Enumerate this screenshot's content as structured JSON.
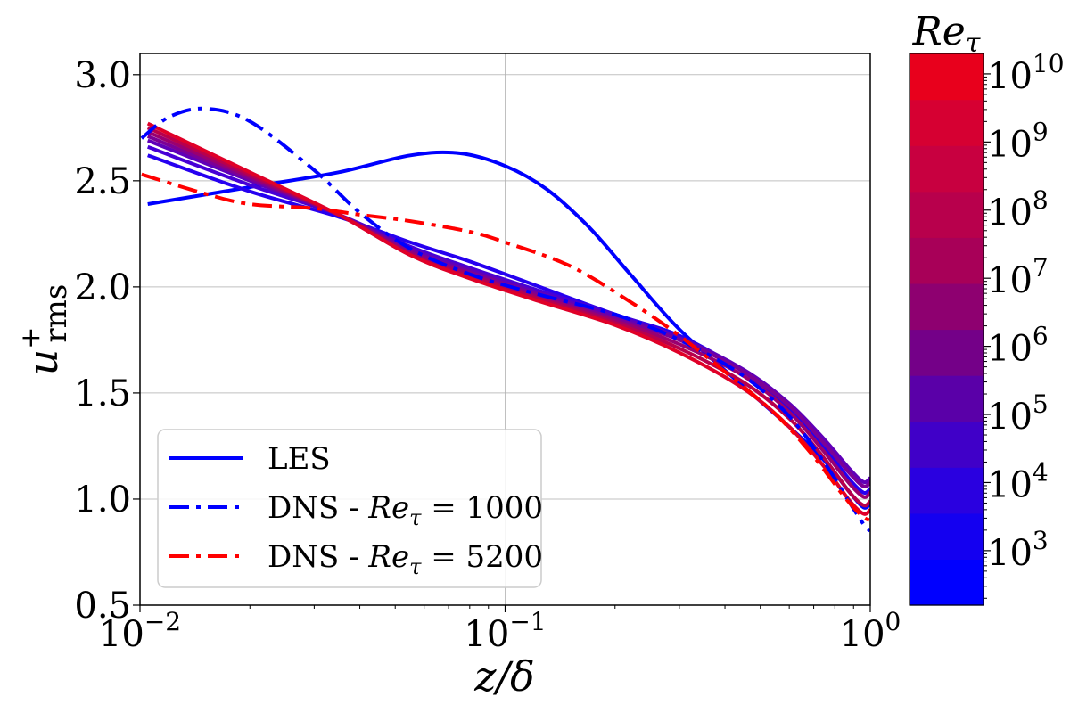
{
  "chart_data": {
    "type": "line",
    "xscale": "log",
    "xlim": [
      0.01,
      1
    ],
    "ylim": [
      0.5,
      3.1
    ],
    "xlabel": "z/δ",
    "ylabel": "u+rms",
    "ylabel_main": "u",
    "ylabel_sup": "+",
    "ylabel_sub": "rms",
    "grid": true,
    "legend_position": "lower-left",
    "x_ticks": [
      {
        "value": 0.01,
        "base": "10",
        "exp": "−2"
      },
      {
        "value": 0.1,
        "base": "10",
        "exp": "−1"
      },
      {
        "value": 1,
        "base": "10",
        "exp": "0"
      }
    ],
    "y_ticks": [
      {
        "value": 0.5,
        "label": "0.5"
      },
      {
        "value": 1.0,
        "label": "1.0"
      },
      {
        "value": 1.5,
        "label": "1.5"
      },
      {
        "value": 2.0,
        "label": "2.0"
      },
      {
        "value": 2.5,
        "label": "2.5"
      },
      {
        "value": 3.0,
        "label": "3.0"
      }
    ],
    "legend": [
      {
        "label": "LES",
        "color": "#0000ff",
        "style": "solid"
      },
      {
        "label_prefix": "DNS - ",
        "math_base": "Re",
        "math_sub": "τ",
        "math_rest": " = 1000",
        "color": "#0000ff",
        "style": "dashdot"
      },
      {
        "label_prefix": "DNS - ",
        "math_base": "Re",
        "math_sub": "τ",
        "math_rest": " = 5200",
        "color": "#ff0000",
        "style": "dashdot"
      }
    ],
    "series": [
      {
        "name": "LES Re_tau 10^2.5",
        "style": "solid",
        "color": "#0000ff",
        "width": 4,
        "x": [
          0.0105,
          0.02,
          0.035,
          0.055,
          0.075,
          0.1,
          0.13,
          0.17,
          0.22,
          0.3,
          0.45,
          0.6,
          0.75,
          0.88,
          0.96,
          1.0
        ],
        "y": [
          2.39,
          2.47,
          2.54,
          2.62,
          2.63,
          2.57,
          2.46,
          2.28,
          2.06,
          1.8,
          1.53,
          1.34,
          1.18,
          1.03,
          0.96,
          0.98
        ]
      },
      {
        "name": "LES Re_tau 10^3.5",
        "style": "solid",
        "color": "#2600f0",
        "width": 4,
        "x": [
          0.0105,
          0.02,
          0.035,
          0.055,
          0.08,
          0.12,
          0.2,
          0.3,
          0.45,
          0.6,
          0.75,
          0.88,
          0.96,
          1.0
        ],
        "y": [
          2.62,
          2.45,
          2.33,
          2.21,
          2.12,
          2.01,
          1.87,
          1.77,
          1.6,
          1.43,
          1.24,
          1.09,
          1.03,
          1.05
        ]
      },
      {
        "name": "LES Re_tau 10^4.5",
        "style": "solid",
        "color": "#4700d6",
        "width": 4,
        "x": [
          0.0105,
          0.02,
          0.035,
          0.055,
          0.08,
          0.12,
          0.2,
          0.3,
          0.45,
          0.6,
          0.75,
          0.88,
          0.96,
          1.0
        ],
        "y": [
          2.66,
          2.48,
          2.34,
          2.19,
          2.09,
          1.99,
          1.87,
          1.76,
          1.6,
          1.44,
          1.26,
          1.12,
          1.06,
          1.08
        ]
      },
      {
        "name": "LES Re_tau 10^5.5",
        "style": "solid",
        "color": "#6000b8",
        "width": 4,
        "x": [
          0.0105,
          0.02,
          0.035,
          0.055,
          0.08,
          0.12,
          0.2,
          0.3,
          0.45,
          0.6,
          0.75,
          0.88,
          0.96,
          1.0
        ],
        "y": [
          2.69,
          2.5,
          2.34,
          2.18,
          2.08,
          1.98,
          1.86,
          1.76,
          1.61,
          1.45,
          1.28,
          1.14,
          1.08,
          1.1
        ]
      },
      {
        "name": "LES Re_tau 10^6.5",
        "style": "solid",
        "color": "#7c0096",
        "width": 4,
        "x": [
          0.0105,
          0.02,
          0.035,
          0.055,
          0.08,
          0.12,
          0.2,
          0.3,
          0.45,
          0.6,
          0.75,
          0.88,
          0.96,
          1.0
        ],
        "y": [
          2.71,
          2.51,
          2.34,
          2.17,
          2.07,
          1.97,
          1.85,
          1.75,
          1.6,
          1.44,
          1.26,
          1.12,
          1.06,
          1.08
        ]
      },
      {
        "name": "LES Re_tau 10^7.5",
        "style": "solid",
        "color": "#9a0070",
        "width": 4,
        "x": [
          0.0105,
          0.02,
          0.035,
          0.055,
          0.08,
          0.12,
          0.2,
          0.3,
          0.45,
          0.6,
          0.75,
          0.88,
          0.96,
          1.0
        ],
        "y": [
          2.73,
          2.52,
          2.34,
          2.16,
          2.06,
          1.96,
          1.84,
          1.73,
          1.58,
          1.41,
          1.22,
          1.07,
          1.01,
          1.03
        ]
      },
      {
        "name": "LES Re_tau 10^8.5",
        "style": "solid",
        "color": "#b8004c",
        "width": 4,
        "x": [
          0.0105,
          0.02,
          0.035,
          0.055,
          0.08,
          0.12,
          0.2,
          0.3,
          0.45,
          0.6,
          0.75,
          0.88,
          0.96,
          1.0
        ],
        "y": [
          2.75,
          2.53,
          2.34,
          2.15,
          2.05,
          1.95,
          1.83,
          1.71,
          1.55,
          1.38,
          1.19,
          1.03,
          0.97,
          0.99
        ]
      },
      {
        "name": "LES Re_tau 10^9.5",
        "style": "solid",
        "color": "#e00028",
        "width": 4,
        "x": [
          0.0105,
          0.02,
          0.035,
          0.055,
          0.08,
          0.12,
          0.2,
          0.3,
          0.45,
          0.6,
          0.75,
          0.88,
          0.96,
          1.0
        ],
        "y": [
          2.77,
          2.54,
          2.34,
          2.15,
          2.04,
          1.94,
          1.82,
          1.69,
          1.52,
          1.34,
          1.15,
          0.99,
          0.93,
          0.95
        ]
      },
      {
        "name": "DNS Re_tau 1000",
        "style": "dashdot",
        "color": "#0000ff",
        "width": 4,
        "x": [
          0.0101,
          0.012,
          0.015,
          0.02,
          0.03,
          0.04,
          0.055,
          0.08,
          0.12,
          0.2,
          0.3,
          0.45,
          0.6,
          0.75,
          0.88,
          0.96,
          1.0
        ],
        "y": [
          2.7,
          2.8,
          2.84,
          2.78,
          2.55,
          2.35,
          2.18,
          2.06,
          1.97,
          1.87,
          1.75,
          1.58,
          1.39,
          1.17,
          0.98,
          0.88,
          0.85
        ]
      },
      {
        "name": "DNS Re_tau 5200",
        "style": "dashdot",
        "color": "#ff0000",
        "width": 4,
        "x": [
          0.0101,
          0.015,
          0.02,
          0.03,
          0.04,
          0.055,
          0.08,
          0.1,
          0.15,
          0.22,
          0.3,
          0.4,
          0.55,
          0.7,
          0.85,
          0.95,
          1.0
        ],
        "y": [
          2.53,
          2.44,
          2.39,
          2.37,
          2.34,
          2.31,
          2.26,
          2.21,
          2.1,
          1.93,
          1.77,
          1.6,
          1.4,
          1.2,
          1.01,
          0.92,
          0.9
        ]
      }
    ],
    "colorbar": {
      "title_base": "Re",
      "title_sub": "τ",
      "log_min": 2.2,
      "log_max": 10.3,
      "levels": [
        {
          "from": 2.2,
          "to": 2.5,
          "color": "#0000ff"
        },
        {
          "from": 2.5,
          "to": 3.5,
          "color": "#1400f0"
        },
        {
          "from": 3.5,
          "to": 4.5,
          "color": "#2a00e0"
        },
        {
          "from": 4.5,
          "to": 5.5,
          "color": "#4000c8"
        },
        {
          "from": 5.5,
          "to": 6.5,
          "color": "#5a00a8"
        },
        {
          "from": 6.5,
          "to": 7.5,
          "color": "#740088"
        },
        {
          "from": 7.5,
          "to": 8.5,
          "color": "#8e0070"
        },
        {
          "from": 8.5,
          "to": 9.5,
          "color": "#a80058"
        },
        {
          "from": 9.5,
          "to": 10.3,
          "color": "#c00048"
        }
      ],
      "shades": [
        "#0000ff",
        "#1400f0",
        "#2a00e0",
        "#4000c8",
        "#5a00a8",
        "#740088",
        "#8e0070",
        "#a80058",
        "#b8004c",
        "#c80040",
        "#d60032",
        "#e8001c"
      ],
      "ticks": [
        {
          "value": 3,
          "base": "10",
          "exp": "3"
        },
        {
          "value": 4,
          "base": "10",
          "exp": "4"
        },
        {
          "value": 5,
          "base": "10",
          "exp": "5"
        },
        {
          "value": 6,
          "base": "10",
          "exp": "6"
        },
        {
          "value": 7,
          "base": "10",
          "exp": "7"
        },
        {
          "value": 8,
          "base": "10",
          "exp": "8"
        },
        {
          "value": 9,
          "base": "10",
          "exp": "9"
        },
        {
          "value": 10,
          "base": "10",
          "exp": "10"
        }
      ]
    }
  }
}
